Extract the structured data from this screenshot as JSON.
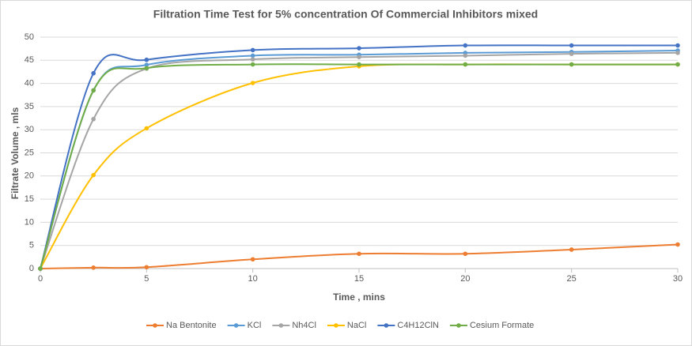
{
  "chart_data": {
    "type": "line",
    "title": "Filtration Time Test for 5% concentration  Of Commercial Inhibitors mixed",
    "x_label": "Time , mins",
    "y_label": "Filtrate Volume , mls",
    "x": [
      0,
      2.5,
      5,
      10,
      15,
      20,
      25,
      30
    ],
    "xlim": [
      0,
      30
    ],
    "xticks": [
      0,
      5,
      10,
      15,
      20,
      25,
      30
    ],
    "ylim": [
      0,
      50
    ],
    "yticks": [
      0,
      5,
      10,
      15,
      20,
      25,
      30,
      35,
      40,
      45,
      50
    ],
    "grid": true,
    "smooth": true,
    "legend": "bottom",
    "series": [
      {
        "name": "Na Bentonite",
        "color": "#ED7D31",
        "values": [
          0,
          0.2,
          0.3,
          2,
          3.2,
          3.2,
          4.1,
          5.2
        ]
      },
      {
        "name": "KCl",
        "color": "#5B9BD5",
        "values": [
          0,
          38.5,
          44,
          46,
          46.2,
          46.6,
          46.8,
          47.1
        ]
      },
      {
        "name": "Nh4Cl",
        "color": "#A5A5A5",
        "values": [
          0,
          32.3,
          43.2,
          45.2,
          45.7,
          46,
          46.4,
          46.6
        ]
      },
      {
        "name": "NaCl",
        "color": "#FFC000",
        "values": [
          0,
          20.2,
          30.3,
          40.1,
          43.7,
          44.1,
          44.1,
          44.1
        ]
      },
      {
        "name": "C4H12ClN",
        "color": "#4472C4",
        "values": [
          0,
          42.2,
          45.1,
          47.2,
          47.6,
          48.2,
          48.2,
          48.2
        ]
      },
      {
        "name": "Cesium Formate",
        "color": "#70AD47",
        "values": [
          0,
          38.5,
          43.3,
          44.1,
          44.1,
          44.1,
          44.1,
          44.1
        ]
      }
    ]
  }
}
